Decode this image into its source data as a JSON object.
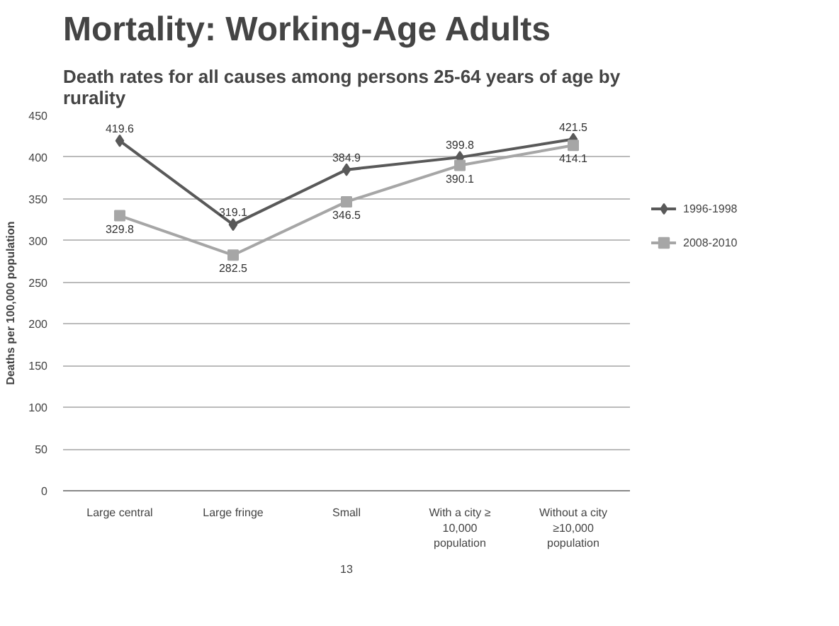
{
  "chart_data": {
    "type": "line",
    "title": "Mortality: Working-Age Adults",
    "subtitle": "Death rates for all causes among persons 25-64 years of age by rurality",
    "ylabel": "Deaths per 100,000 population",
    "categories": [
      "Large central",
      "Large fringe",
      "Small",
      "With a city ≥ 10,000 population",
      "Without a city ≥10,000 population"
    ],
    "series": [
      {
        "name": "1996-1998",
        "color": "#595959",
        "marker": "diamond",
        "values": [
          419.6,
          319.1,
          384.9,
          399.8,
          421.5
        ]
      },
      {
        "name": "2008-2010",
        "color": "#a6a6a6",
        "marker": "square",
        "values": [
          329.8,
          282.5,
          346.5,
          390.1,
          414.1
        ]
      }
    ],
    "ylim": [
      0,
      450
    ],
    "yticks": [
      0,
      50,
      100,
      150,
      200,
      250,
      300,
      350,
      400,
      450
    ],
    "grid": "y",
    "legend": "right",
    "data_labels": true,
    "annotations": [
      "13"
    ]
  }
}
